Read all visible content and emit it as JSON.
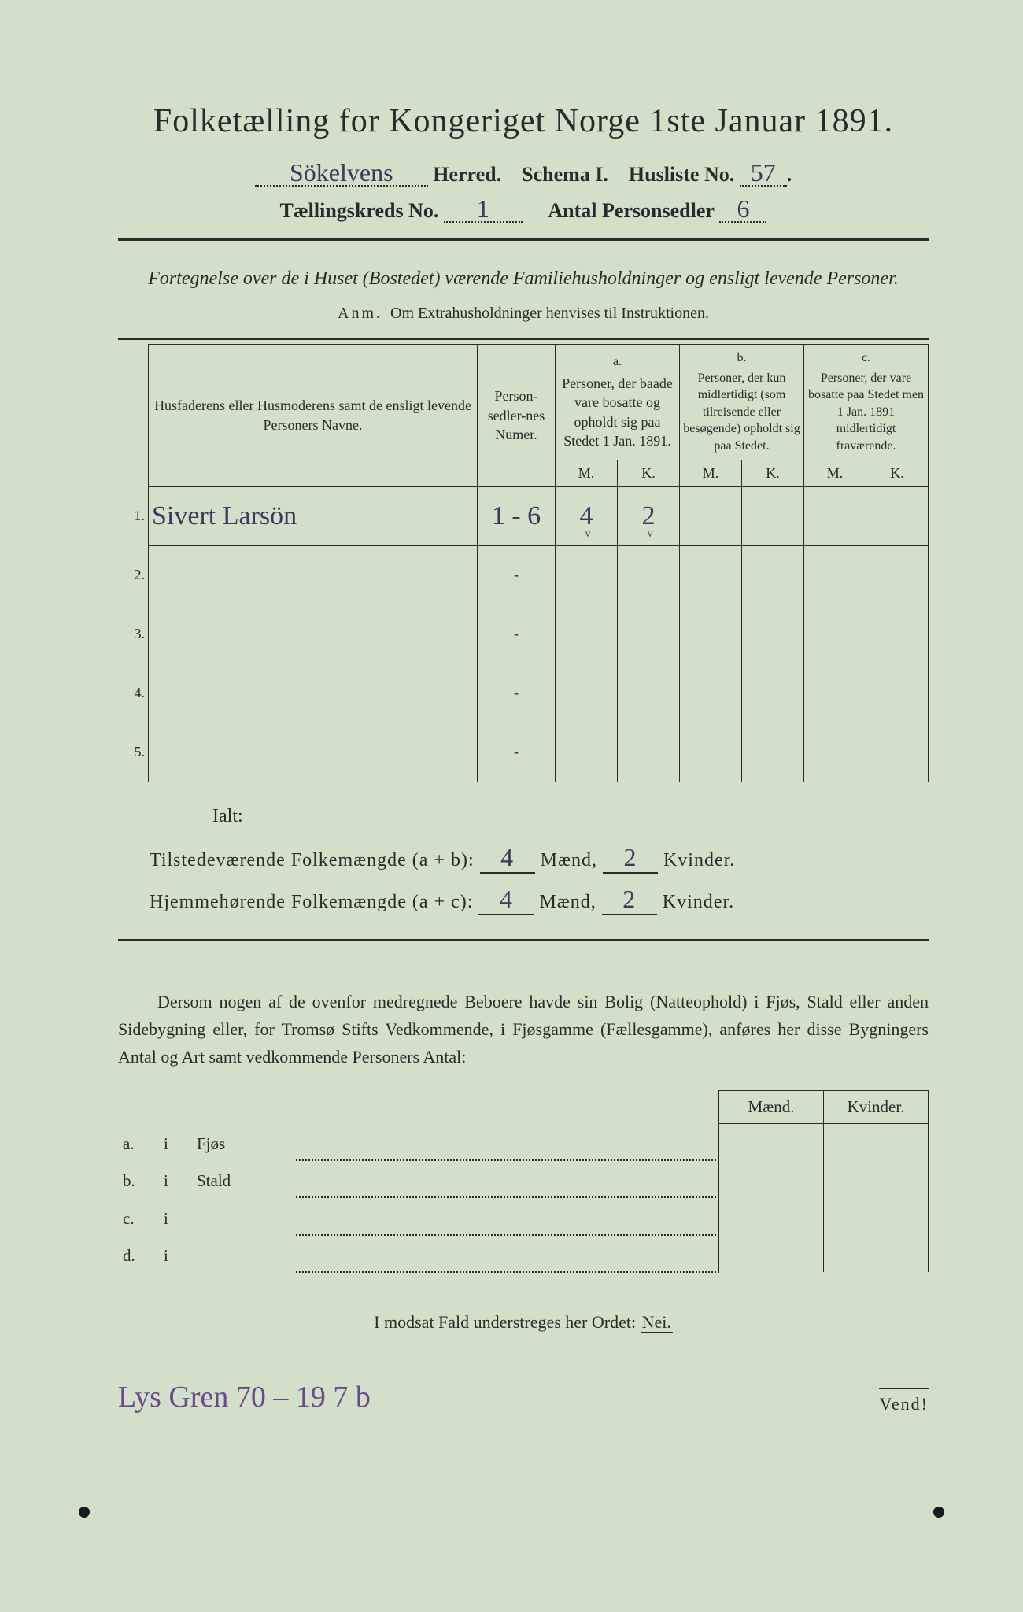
{
  "title": "Folketælling for Kongeriget Norge 1ste Januar 1891.",
  "header": {
    "herred_value": "Sökelvens",
    "herred_label": "Herred.",
    "schema_label": "Schema I.",
    "husliste_label": "Husliste No.",
    "husliste_value": "57",
    "kreds_label": "Tællingskreds No.",
    "kreds_value": "1",
    "antal_label": "Antal Personsedler",
    "antal_value": "6"
  },
  "subtitle": "Fortegnelse over de i Huset (Bostedet) værende Familiehusholdninger og ensligt levende Personer.",
  "anm_label": "Anm.",
  "anm_text": "Om Extrahusholdninger henvises til Instruktionen.",
  "columns": {
    "name": "Husfaderens eller Husmoderens samt de ensligt levende Personers Navne.",
    "num": "Person-sedler-nes Numer.",
    "a_label": "a.",
    "a_text": "Personer, der baade vare bosatte og opholdt sig paa Stedet 1 Jan. 1891.",
    "b_label": "b.",
    "b_text": "Personer, der kun midlertidigt (som tilreisende eller besøgende) opholdt sig paa Stedet.",
    "c_label": "c.",
    "c_text": "Personer, der vare bosatte paa Stedet men 1 Jan. 1891 midlertidigt fraværende.",
    "m": "M.",
    "k": "K."
  },
  "rows": [
    {
      "n": "1.",
      "name": "Sivert Larsön",
      "num": "1 - 6",
      "am": "4",
      "ak": "2",
      "bm": "",
      "bk": "",
      "cm": "",
      "ck": ""
    },
    {
      "n": "2.",
      "name": "",
      "num": "-",
      "am": "",
      "ak": "",
      "bm": "",
      "bk": "",
      "cm": "",
      "ck": ""
    },
    {
      "n": "3.",
      "name": "",
      "num": "-",
      "am": "",
      "ak": "",
      "bm": "",
      "bk": "",
      "cm": "",
      "ck": ""
    },
    {
      "n": "4.",
      "name": "",
      "num": "-",
      "am": "",
      "ak": "",
      "bm": "",
      "bk": "",
      "cm": "",
      "ck": ""
    },
    {
      "n": "5.",
      "name": "",
      "num": "-",
      "am": "",
      "ak": "",
      "bm": "",
      "bk": "",
      "cm": "",
      "ck": ""
    }
  ],
  "ialt": "Ialt:",
  "summary": {
    "line1_a": "Tilstedeværende Folkemængde (a + b):",
    "line1_m": "4",
    "line1_mid": "Mænd,",
    "line1_k": "2",
    "line1_end": "Kvinder.",
    "line2_a": "Hjemmehørende Folkemængde (a + c):",
    "line2_m": "4",
    "line2_mid": "Mænd,",
    "line2_k": "2",
    "line2_end": "Kvinder."
  },
  "para": "Dersom nogen af de ovenfor medregnede Beboere havde sin Bolig (Natteophold) i Fjøs, Stald eller anden Sidebygning eller, for Tromsø Stifts Vedkommende, i Fjøsgamme (Fællesgamme), anføres her disse Bygningers Antal og Art samt vedkommende Personers Antal:",
  "side_table": {
    "maend": "Mænd.",
    "kvinder": "Kvinder.",
    "rows": [
      {
        "label": "a.",
        "i": "i",
        "name": "Fjøs"
      },
      {
        "label": "b.",
        "i": "i",
        "name": "Stald"
      },
      {
        "label": "c.",
        "i": "i",
        "name": ""
      },
      {
        "label": "d.",
        "i": "i",
        "name": ""
      }
    ]
  },
  "modsat_pre": "I modsat Fald understreges her Ordet:",
  "modsat_nei": "Nei.",
  "bottom_hand": "Lys Gren 70 – 19 7 b",
  "vend": "Vend!"
}
